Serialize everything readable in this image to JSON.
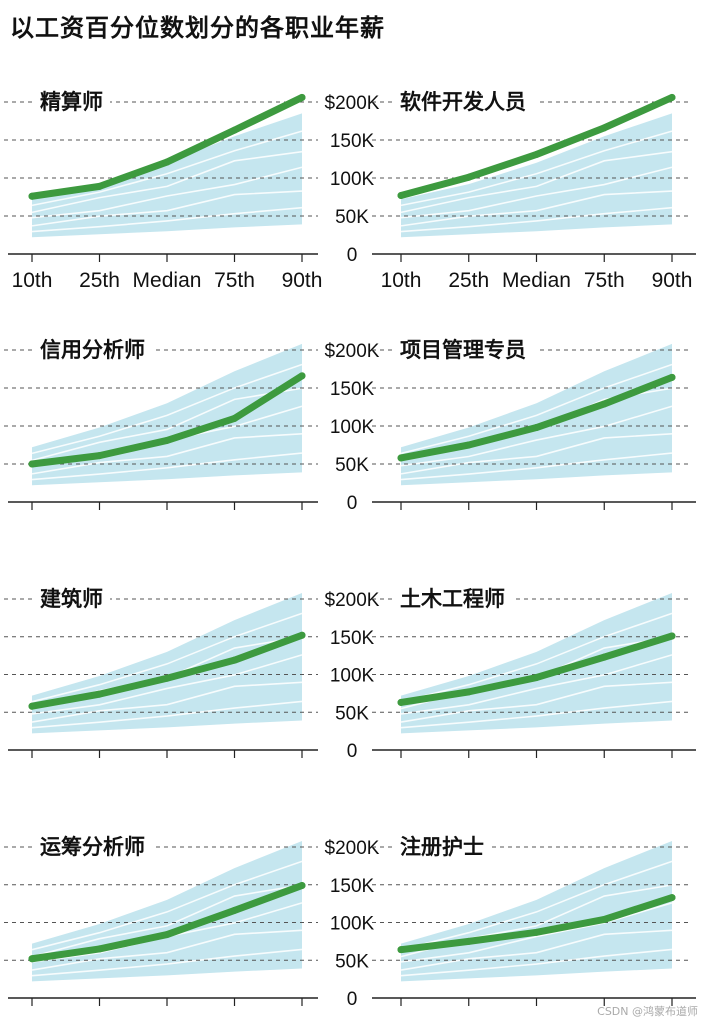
{
  "title": "以工资百分位数划分的各职业年薪",
  "watermark": "CSDN @鸿蒙布道师",
  "colors": {
    "highlight": "#3d9a3f",
    "band": "#c5e6ef",
    "bg_line": "#ffffff",
    "grid": "#555555"
  },
  "chart_data": [
    {
      "type": "line",
      "title": "精算师",
      "categories": [
        "10th",
        "25th",
        "Median",
        "75th",
        "90th"
      ],
      "series": [
        {
          "values": [
            76000,
            89000,
            121000,
            163000,
            206000
          ]
        }
      ],
      "band_low": [
        22000,
        26000,
        30000,
        35000,
        39000
      ],
      "band_high": [
        72000,
        92000,
        120000,
        155000,
        185000
      ],
      "yticks": [
        "$200K",
        "150K",
        "100K",
        "50K",
        "0"
      ],
      "ylim": [
        0,
        210000
      ],
      "grid": true,
      "x_tick_labels_shown": true
    },
    {
      "type": "line",
      "title": "软件开发人员",
      "categories": [
        "10th",
        "25th",
        "Median",
        "75th",
        "90th"
      ],
      "series": [
        {
          "values": [
            77000,
            101000,
            131000,
            166000,
            206000
          ]
        }
      ],
      "band_low": [
        22000,
        26000,
        30000,
        35000,
        39000
      ],
      "band_high": [
        72000,
        92000,
        120000,
        155000,
        185000
      ],
      "yticks": [
        "$200K",
        "150K",
        "100K",
        "50K",
        "0"
      ],
      "ylim": [
        0,
        210000
      ],
      "grid": true,
      "x_tick_labels_shown": true
    },
    {
      "type": "line",
      "title": "信用分析师",
      "categories": [
        "10th",
        "25th",
        "Median",
        "75th",
        "90th"
      ],
      "series": [
        {
          "values": [
            50000,
            61000,
            81000,
            110000,
            166000
          ]
        }
      ],
      "band_low": [
        22000,
        26000,
        30000,
        35000,
        39000
      ],
      "band_high": [
        72000,
        98000,
        130000,
        172000,
        208000
      ],
      "yticks": [
        "$200K",
        "150K",
        "100K",
        "50K",
        "0"
      ],
      "ylim": [
        0,
        210000
      ],
      "grid": true,
      "x_tick_labels_shown": false
    },
    {
      "type": "line",
      "title": "项目管理专员",
      "categories": [
        "10th",
        "25th",
        "Median",
        "75th",
        "90th"
      ],
      "series": [
        {
          "values": [
            58000,
            75000,
            98000,
            129000,
            164000
          ]
        }
      ],
      "band_low": [
        22000,
        26000,
        30000,
        35000,
        39000
      ],
      "band_high": [
        72000,
        98000,
        130000,
        172000,
        208000
      ],
      "yticks": [
        "$200K",
        "150K",
        "100K",
        "50K",
        "0"
      ],
      "ylim": [
        0,
        210000
      ],
      "grid": true,
      "x_tick_labels_shown": false
    },
    {
      "type": "line",
      "title": "建筑师",
      "categories": [
        "10th",
        "25th",
        "Median",
        "75th",
        "90th"
      ],
      "series": [
        {
          "values": [
            58000,
            74000,
            95000,
            119000,
            152000
          ]
        }
      ],
      "band_low": [
        22000,
        26000,
        30000,
        35000,
        39000
      ],
      "band_high": [
        72000,
        98000,
        130000,
        172000,
        208000
      ],
      "yticks": [
        "$200K",
        "150K",
        "100K",
        "50K",
        "0"
      ],
      "ylim": [
        0,
        210000
      ],
      "grid": true,
      "x_tick_labels_shown": false
    },
    {
      "type": "line",
      "title": "土木工程师",
      "categories": [
        "10th",
        "25th",
        "Median",
        "75th",
        "90th"
      ],
      "series": [
        {
          "values": [
            63000,
            77000,
            96000,
            123000,
            151000
          ]
        }
      ],
      "band_low": [
        22000,
        26000,
        30000,
        35000,
        39000
      ],
      "band_high": [
        72000,
        98000,
        130000,
        172000,
        208000
      ],
      "yticks": [
        "$200K",
        "150K",
        "100K",
        "50K",
        "0"
      ],
      "ylim": [
        0,
        210000
      ],
      "grid": true,
      "x_tick_labels_shown": false
    },
    {
      "type": "line",
      "title": "运筹分析师",
      "categories": [
        "10th",
        "25th",
        "Median",
        "75th",
        "90th"
      ],
      "series": [
        {
          "values": [
            52000,
            65000,
            84000,
            116000,
            149000
          ]
        }
      ],
      "band_low": [
        22000,
        26000,
        30000,
        35000,
        39000
      ],
      "band_high": [
        72000,
        98000,
        130000,
        172000,
        208000
      ],
      "yticks": [
        "$200K",
        "150K",
        "100K",
        "50K",
        "0"
      ],
      "ylim": [
        0,
        210000
      ],
      "grid": true,
      "x_tick_labels_shown": false
    },
    {
      "type": "line",
      "title": "注册护士",
      "categories": [
        "10th",
        "25th",
        "Median",
        "75th",
        "90th"
      ],
      "series": [
        {
          "values": [
            64000,
            75000,
            87000,
            104000,
            133000
          ]
        }
      ],
      "band_low": [
        22000,
        26000,
        30000,
        35000,
        39000
      ],
      "band_high": [
        72000,
        98000,
        130000,
        172000,
        208000
      ],
      "yticks": [
        "$200K",
        "150K",
        "100K",
        "50K",
        "0"
      ],
      "ylim": [
        0,
        210000
      ],
      "grid": true,
      "x_tick_labels_shown": false
    }
  ]
}
